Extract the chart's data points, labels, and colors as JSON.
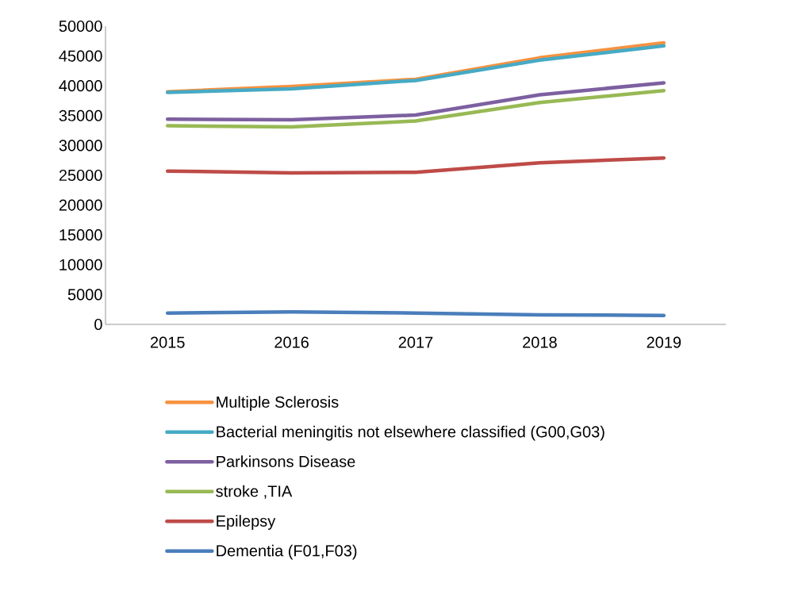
{
  "chart_data": {
    "type": "line",
    "categories": [
      "2015",
      "2016",
      "2017",
      "2018",
      "2019"
    ],
    "series": [
      {
        "name": "Multiple Sclerosis",
        "color": "#f69240",
        "values": [
          39000,
          39900,
          41100,
          44700,
          47200
        ]
      },
      {
        "name": "Bacterial meningitis not elsewhere classified (G00,G03)",
        "color": "#46aac5",
        "values": [
          38900,
          39500,
          40900,
          44300,
          46700
        ]
      },
      {
        "name": "Parkinsons Disease",
        "color": "#7d60a0",
        "values": [
          34400,
          34300,
          35100,
          38500,
          40500
        ]
      },
      {
        "name": "stroke ,TIA",
        "color": "#98b954",
        "values": [
          33300,
          33100,
          34100,
          37200,
          39200
        ]
      },
      {
        "name": "Epilepsy",
        "color": "#be4b48",
        "values": [
          25700,
          25400,
          25500,
          27100,
          27900
        ]
      },
      {
        "name": "Dementia (F01,F03)",
        "color": "#4a7ebb",
        "values": [
          1900,
          2100,
          1900,
          1600,
          1500
        ]
      }
    ],
    "ylim": [
      0,
      50000
    ],
    "yticks": [
      0,
      5000,
      10000,
      15000,
      20000,
      25000,
      30000,
      35000,
      40000,
      45000,
      50000
    ],
    "legend": "bottom"
  }
}
